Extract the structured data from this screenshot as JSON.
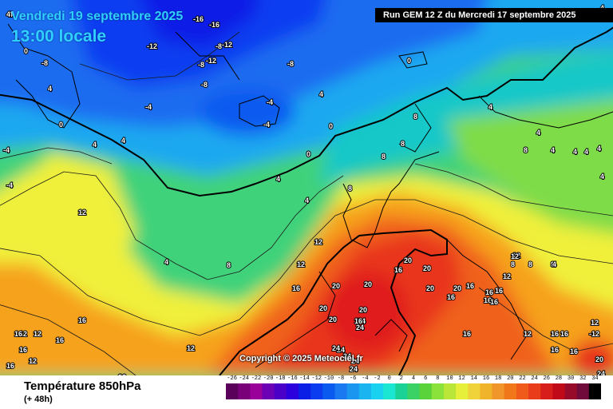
{
  "header": {
    "date": "Vendredi 19 septembre 2025",
    "time": "13:00 locale",
    "run": "Run GEM 12 Z du Mercredi 17 septembre 2025"
  },
  "map": {
    "copyright": "Copyright © 2025 Meteociel.fr",
    "isotherm_labels": [
      "-4",
      "-16",
      "-16",
      "-12",
      "-8",
      "-12",
      "-8",
      "-12",
      "0",
      "-8",
      "-8",
      "-8",
      "0",
      "4",
      "-4",
      "-4",
      "-4",
      "0",
      "4",
      "0",
      "4",
      "-4",
      "4",
      "0",
      "-4",
      "8",
      "8",
      "8",
      "4",
      "8",
      "12",
      "4",
      "4",
      "4",
      "4",
      "8",
      "4",
      "12",
      "12",
      "12",
      "16",
      "16",
      "20",
      "20",
      "20",
      "20",
      "16",
      "16",
      "20",
      "20",
      "20",
      "24",
      "24",
      "20",
      "20",
      "16",
      "24",
      "24",
      "16",
      "16",
      "16",
      "16",
      "16",
      "12",
      "12",
      "12",
      "12",
      "8",
      "8",
      "8",
      "12",
      "12",
      "12",
      "16",
      "16",
      "16",
      "16",
      "16",
      "16",
      "16",
      "16",
      "16",
      "12",
      "20",
      "24",
      "24",
      "24",
      "24",
      "16",
      "-12",
      "4",
      "4",
      "4",
      "4",
      "4",
      "4",
      "8",
      "4"
    ],
    "colors": {
      "deep_blue": "#0b2fd6",
      "blue": "#1a6cf0",
      "cyan": "#1fb8f0",
      "teal": "#12c8c8",
      "green": "#3fd27a",
      "light_green": "#7fdc4a",
      "yellow": "#f0f03a",
      "orange": "#f6a21a",
      "red_orange": "#f0621a",
      "red": "#e8341a"
    }
  },
  "footer": {
    "title": "Température 850hPa",
    "subtitle": "(+ 48h)",
    "legend_labels": [
      "-26",
      "-24",
      "-22",
      "-20",
      "-18",
      "-16",
      "-14",
      "-12",
      "-10",
      "-8",
      "-6",
      "-4",
      "-2",
      "0",
      "2",
      "4",
      "6",
      "8",
      "10",
      "12",
      "14",
      "16",
      "18",
      "20",
      "22",
      "24",
      "26",
      "28",
      "30",
      "32",
      "34"
    ],
    "legend_colors": [
      "#5a005a",
      "#7a007a",
      "#9a009a",
      "#6b00b4",
      "#4b00c8",
      "#2b00dc",
      "#0b1ee6",
      "#0b3cf0",
      "#0b5af0",
      "#1a78f0",
      "#1a96f0",
      "#1ab4f0",
      "#1ad2f0",
      "#1ae6d2",
      "#1ad296",
      "#3ad264",
      "#5ad23a",
      "#8ae23a",
      "#bae63a",
      "#e6f03a",
      "#f0d23a",
      "#f0b42a",
      "#f0962a",
      "#f0781a",
      "#f05a1a",
      "#e83c1a",
      "#d81e1a",
      "#c00a1a",
      "#980a2a",
      "#700a3a",
      "#000000"
    ]
  }
}
